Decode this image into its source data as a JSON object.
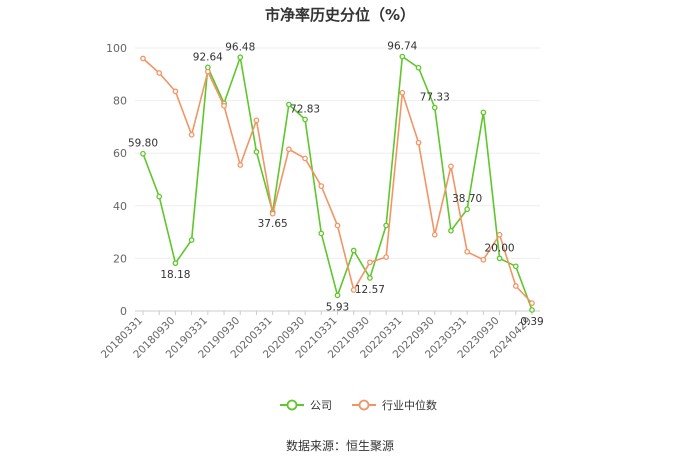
{
  "title": "市净率历史分位（%）",
  "source": "数据来源：恒生聚源",
  "chart_data": {
    "type": "line",
    "title": "市净率历史分位（%）",
    "xlabel": "",
    "ylabel": "",
    "ylim": [
      0,
      100
    ],
    "yticks": [
      0,
      20,
      40,
      60,
      80,
      100
    ],
    "grid": true,
    "legend_position": "bottom",
    "x": [
      "20180331",
      "20180630",
      "20180930",
      "20181231",
      "20190331",
      "20190630",
      "20190930",
      "20191231",
      "20200331",
      "20200630",
      "20200930",
      "20201231",
      "20210331",
      "20210630",
      "20210930",
      "20211231",
      "20220331",
      "20220630",
      "20220930",
      "20221231",
      "20230331",
      "20230630",
      "20230930",
      "20231231",
      "20240429"
    ],
    "x_tick_labels": [
      "20180331",
      "20180930",
      "20190331",
      "20190930",
      "20200331",
      "20200930",
      "20210331",
      "20210930",
      "20220331",
      "20220930",
      "20230331",
      "20230930",
      "20240429"
    ],
    "series": [
      {
        "name": "公司",
        "color": "#5ec72b",
        "values": [
          59.8,
          43.5,
          18.18,
          27.0,
          92.64,
          79.0,
          96.48,
          60.5,
          37.65,
          78.5,
          72.83,
          29.5,
          5.93,
          23.0,
          12.57,
          32.5,
          96.74,
          92.5,
          77.33,
          30.5,
          38.7,
          75.5,
          20.0,
          17.0,
          0.39
        ],
        "labels": {
          "0": "59.80",
          "2": "18.18",
          "4": "92.64",
          "6": "96.48",
          "8": "37.65",
          "10": "72.83",
          "12": "5.93",
          "14": "12.57",
          "16": "96.74",
          "18": "77.33",
          "20": "38.70",
          "22": "20.00",
          "24": "0.39"
        }
      },
      {
        "name": "行业中位数",
        "color": "#f29566",
        "values": [
          96.0,
          90.5,
          83.5,
          67.0,
          91.0,
          78.0,
          55.5,
          72.5,
          37.0,
          61.5,
          58.0,
          47.5,
          32.5,
          8.0,
          18.5,
          20.5,
          83.0,
          64.0,
          29.0,
          55.0,
          22.5,
          19.5,
          29.0,
          9.5,
          3.0
        ]
      }
    ]
  }
}
